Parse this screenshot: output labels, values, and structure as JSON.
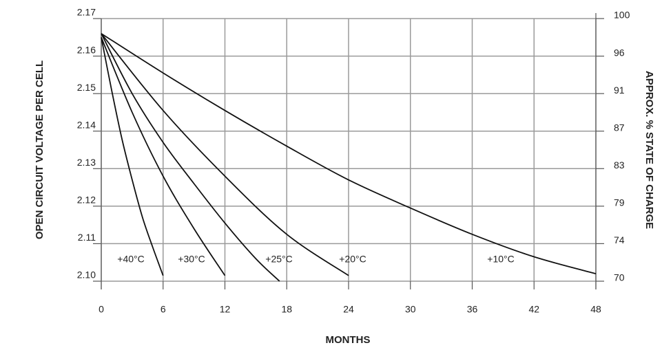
{
  "chart_data": {
    "type": "line",
    "y_label": "OPEN CIRCUIT VOLTAGE PER CELL",
    "y2_label": "APPROX. % STATE OF CHARGE",
    "x_label": "MONTHS",
    "xlim": [
      0,
      48
    ],
    "xticks": [
      0,
      6,
      12,
      18,
      24,
      30,
      36,
      42,
      48
    ],
    "ylim": [
      2.1,
      2.17
    ],
    "yticks": [
      {
        "value": 2.1,
        "label": "2.10"
      },
      2.11,
      2.12,
      2.13,
      2.14,
      2.15,
      2.16,
      2.17
    ],
    "y2lim": [
      70,
      100
    ],
    "y2ticks": [
      70,
      {
        "value": 74.29,
        "label": "74"
      },
      {
        "value": 78.57,
        "label": "79"
      },
      {
        "value": 82.86,
        "label": "83"
      },
      {
        "value": 87.14,
        "label": "87"
      },
      {
        "value": 91.43,
        "label": "91"
      },
      {
        "value": 95.71,
        "label": "96"
      },
      100
    ],
    "grid": true,
    "series": [
      {
        "name": "+40°C",
        "color": "#111111",
        "x": [
          0,
          1,
          2,
          3,
          4,
          5,
          6
        ],
        "values": [
          2.165,
          2.151,
          2.138,
          2.127,
          2.117,
          2.109,
          2.1015
        ]
      },
      {
        "name": "+30°C",
        "color": "#111111",
        "x": [
          0,
          3,
          6,
          9,
          12
        ],
        "values": [
          2.165,
          2.145,
          2.128,
          2.114,
          2.1015
        ]
      },
      {
        "name": "+25°C",
        "color": "#111111",
        "x": [
          0,
          3,
          6,
          9,
          12,
          15,
          17.3
        ],
        "values": [
          2.166,
          2.15,
          2.137,
          2.126,
          2.1155,
          2.106,
          2.1
        ]
      },
      {
        "name": "+20°C",
        "color": "#111111",
        "x": [
          0,
          6,
          12,
          18,
          24
        ],
        "values": [
          2.166,
          2.1455,
          2.128,
          2.1125,
          2.1015
        ]
      },
      {
        "name": "+10°C",
        "color": "#111111",
        "x": [
          0,
          6,
          12,
          18,
          24,
          30,
          36,
          42,
          48
        ],
        "values": [
          2.166,
          2.1555,
          2.1455,
          2.136,
          2.127,
          2.1195,
          2.1125,
          2.1065,
          2.102
        ]
      }
    ]
  }
}
